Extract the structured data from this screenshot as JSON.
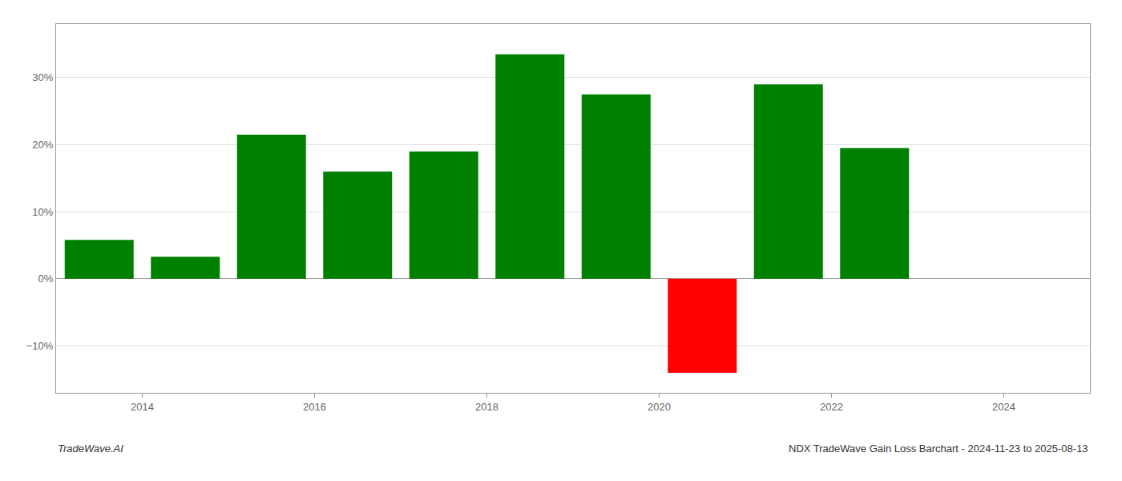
{
  "chart_data": {
    "type": "bar",
    "x": [
      2013.5,
      2014.5,
      2015.5,
      2016.5,
      2017.5,
      2018.5,
      2019.5,
      2020.5,
      2021.5,
      2022.5
    ],
    "values": [
      5.8,
      3.3,
      21.5,
      16.0,
      19.0,
      33.5,
      27.5,
      -14.0,
      29.0,
      19.5
    ],
    "colors": [
      "#008000",
      "#008000",
      "#008000",
      "#008000",
      "#008000",
      "#008000",
      "#008000",
      "#ff0000",
      "#008000",
      "#008000"
    ],
    "xlim": [
      2013.0,
      2025.0
    ],
    "xticks": [
      2014,
      2016,
      2018,
      2020,
      2022,
      2024
    ],
    "ylim": [
      -17,
      38
    ],
    "yticks": [
      {
        "value": -10,
        "label": "−10%"
      },
      {
        "value": 0,
        "label": "0%"
      },
      {
        "value": 10,
        "label": "10%"
      },
      {
        "value": 20,
        "label": "20%"
      },
      {
        "value": 30,
        "label": "30%"
      }
    ],
    "grid": "y",
    "annotations": [
      "TradeWave.AI",
      "NDX TradeWave Gain Loss Barchart - 2024-11-23 to 2025-08-13"
    ]
  }
}
